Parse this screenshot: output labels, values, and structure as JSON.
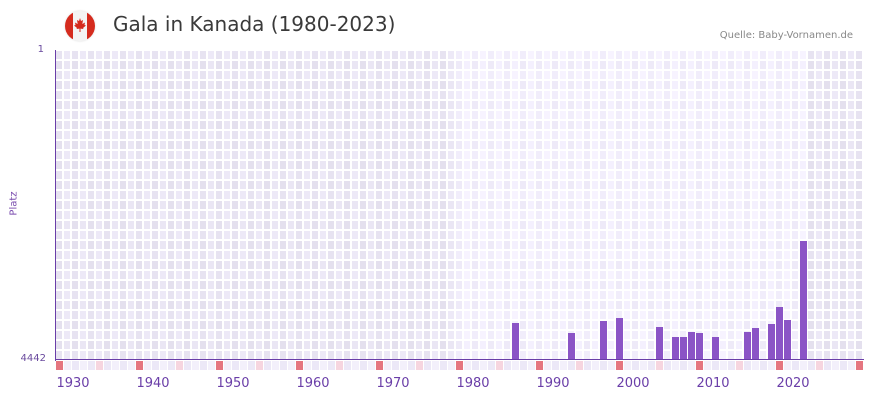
{
  "header": {
    "flag_icon": "canada-flag-icon",
    "title": "Gala in Kanada (1980-2023)",
    "source": "Quelle: Baby-Vornamen.de"
  },
  "colors": {
    "bar": "#8b54c6",
    "axis": "#6a3ea8",
    "grid_outside": "#e4e0ee",
    "grid_inside": "#eeeaf8",
    "decade_marker": "#e57680",
    "half_decade_marker": "#f6d5df"
  },
  "chart_data": {
    "type": "bar",
    "title": "Gala in Kanada (1980-2023)",
    "xlabel": "",
    "ylabel": "Platz",
    "ylim": [
      4442,
      1
    ],
    "y_inverted": true,
    "y_ticks": [
      "1",
      "4442"
    ],
    "x_range": [
      1930,
      2030
    ],
    "data_range": [
      1980,
      2023
    ],
    "x_ticks": [
      "1930",
      "1940",
      "1950",
      "1960",
      "1970",
      "1980",
      "1990",
      "2000",
      "2010",
      "2020"
    ],
    "grid": true,
    "legend": "none",
    "categories": [
      1987,
      1994,
      1998,
      2000,
      2005,
      2007,
      2008,
      2009,
      2010,
      2012,
      2016,
      2017,
      2019,
      2020,
      2021,
      2023
    ],
    "values": [
      3912,
      4055,
      3884,
      3841,
      3970,
      4113,
      4113,
      4041,
      4055,
      4113,
      4041,
      3984,
      3927,
      3683,
      3869,
      2737
    ],
    "series": [
      {
        "name": "Platz",
        "values": [
          3912,
          4055,
          3884,
          3841,
          3970,
          4113,
          4113,
          4041,
          4055,
          4113,
          4041,
          3984,
          3927,
          3683,
          3869,
          2737
        ]
      }
    ]
  }
}
